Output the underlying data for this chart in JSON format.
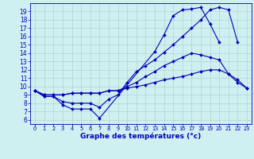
{
  "title": "Graphe des températures (°c)",
  "background_color": "#cff0f0",
  "grid_color": "#aed4d4",
  "line_color": "#0000bb",
  "x_labels": [
    "0",
    "1",
    "2",
    "3",
    "4",
    "5",
    "6",
    "7",
    "8",
    "9",
    "10",
    "11",
    "12",
    "13",
    "14",
    "15",
    "16",
    "17",
    "18",
    "19",
    "20",
    "21",
    "22",
    "23"
  ],
  "y_ticks": [
    6,
    7,
    8,
    9,
    10,
    11,
    12,
    13,
    14,
    15,
    16,
    17,
    18,
    19
  ],
  "ylim": [
    5.5,
    20.0
  ],
  "xlim": [
    -0.5,
    23.5
  ],
  "series": [
    [
      9.5,
      8.8,
      8.8,
      7.8,
      7.3,
      7.3,
      7.3,
      6.2,
      null,
      null,
      null,
      null,
      null,
      14.2,
      16.2,
      18.5,
      19.2,
      19.3,
      19.5,
      17.5,
      15.3,
      null,
      null,
      null
    ],
    [
      9.5,
      8.8,
      8.8,
      8.2,
      8.0,
      8.0,
      8.0,
      7.5,
      8.5,
      9.0,
      10.5,
      11.8,
      12.5,
      13.2,
      14.1,
      15.0,
      16.0,
      17.0,
      18.0,
      19.2,
      19.5,
      19.2,
      15.3,
      null
    ],
    [
      9.5,
      9.0,
      9.0,
      9.0,
      9.2,
      9.2,
      9.2,
      9.2,
      9.5,
      9.5,
      10.0,
      10.5,
      11.2,
      11.8,
      12.5,
      13.0,
      13.5,
      14.0,
      13.8,
      13.5,
      13.2,
      11.5,
      10.8,
      9.8
    ],
    [
      9.5,
      9.0,
      9.0,
      9.0,
      9.2,
      9.2,
      9.2,
      9.2,
      9.5,
      9.5,
      9.8,
      10.0,
      10.2,
      10.5,
      10.8,
      11.0,
      11.2,
      11.5,
      11.8,
      12.0,
      12.0,
      11.5,
      10.5,
      9.8
    ]
  ]
}
